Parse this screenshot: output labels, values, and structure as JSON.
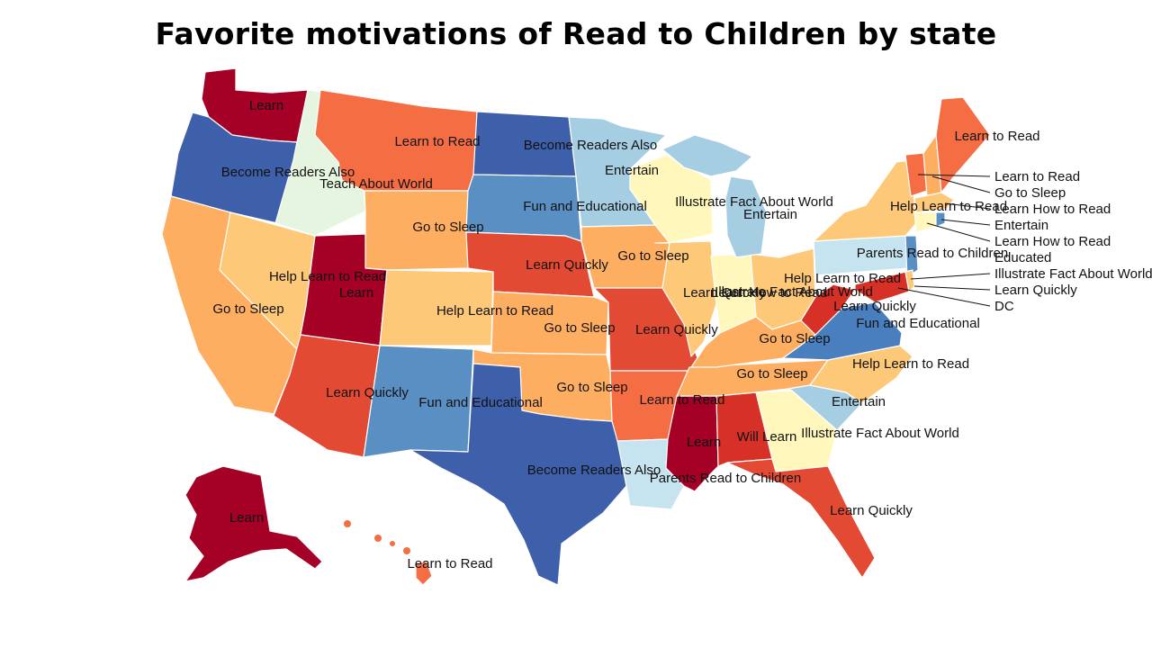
{
  "title": "Favorite motivations of Read to Children by state",
  "palette": {
    "dark_red": "#a50026",
    "red": "#d73027",
    "red_orange": "#e34a33",
    "orange": "#f46d43",
    "light_orange": "#fdae61",
    "peach": "#fdc877",
    "pale_yellow": "#fff7bc",
    "pale_green": "#e5f5e0",
    "light_blue": "#a6cee3",
    "pale_blue": "#c6e4f0",
    "mid_blue": "#5a8fc4",
    "steel_blue": "#4a7fbf",
    "dark_blue": "#3e60ab"
  },
  "states": {
    "WA": "Learn",
    "OR": "Become Readers Also",
    "ID": "Teach About World",
    "MT": "Learn to Read",
    "ND": "Become Readers Also",
    "MN": "Entertain",
    "WY": "Go to Sleep",
    "SD": "Fun and Educational",
    "NE": "Learn Quickly",
    "IA": "Go to Sleep",
    "WI": "Illustrate Fact About World",
    "MI": "Entertain",
    "IL": "Learn Quickly",
    "IN": "Learn How to Read",
    "OH": "Help Learn to Read",
    "NV": "Help Learn to Read",
    "UT": "Learn",
    "CO": "Help Learn to Read",
    "KS": "Go to Sleep",
    "MO": "Learn Quickly",
    "KY": "Go to Sleep",
    "WV": "Learn Quickly",
    "VA": "Fun and Educational",
    "CA": "Go to Sleep",
    "AZ": "Learn Quickly",
    "NM": "Fun and Educational",
    "OK": "Go to Sleep",
    "AR": "Learn to Read",
    "TN": "Go to Sleep",
    "NC": "Help Learn to Read",
    "SC": "Entertain",
    "TX": "Become Readers Also",
    "LA": "Parents Read to Children",
    "MS": "Learn",
    "AL": "Will Learn",
    "GA": "Illustrate Fact About World",
    "FL": "Learn Quickly",
    "AK": "Learn",
    "HI": "Learn to Read",
    "ME": "Learn to Read",
    "NY": "Help Learn to Read",
    "PA": "Parents Read to Children",
    "NJ": "Illustrate Fact About World",
    "MD": "Learn Quickly",
    "VT": "Learn to Read",
    "NH": "Go to Sleep",
    "MA": "Learn How to Read",
    "RI": "Entertain",
    "CT": "Learn How to Read",
    "DE": "Educated",
    "DC": "DC"
  },
  "callouts": [
    "Learn to Read",
    "Go to Sleep",
    "Learn How to Read",
    "Entertain",
    "Learn How to Read",
    "Educated",
    "Illustrate Fact About World",
    "Learn Quickly",
    "DC"
  ]
}
